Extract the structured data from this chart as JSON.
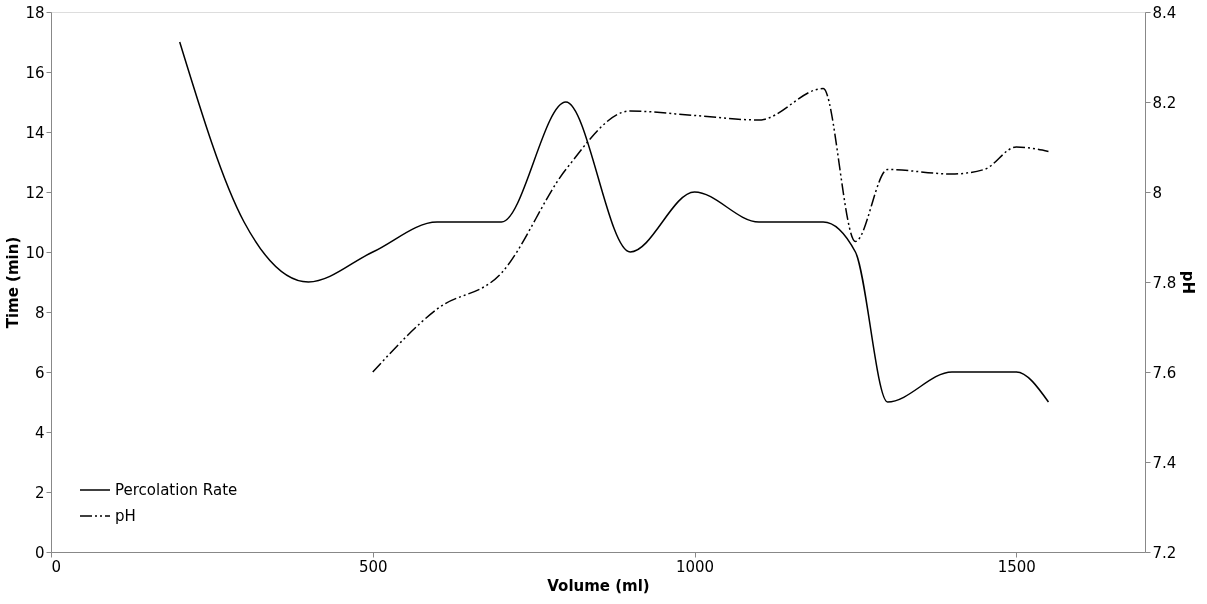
{
  "chart_data": {
    "type": "line",
    "xlabel": "Volume (ml)",
    "ylabel": "Time (min)",
    "y2label": "pH",
    "xlim": [
      0,
      1700
    ],
    "xticks": [
      0,
      500,
      1000,
      1500
    ],
    "ylim": [
      0,
      18
    ],
    "yticks": [
      0,
      2,
      4,
      6,
      8,
      10,
      12,
      14,
      16,
      18
    ],
    "y2lim": [
      7.2,
      8.4
    ],
    "y2ticks": [
      7.2,
      7.4,
      7.6,
      7.8,
      8,
      8.2,
      8.4
    ],
    "grid": false,
    "legend": "bottom left",
    "marker": "none",
    "series": [
      {
        "name": "Percolation Rate",
        "color": "#000000",
        "line_style": "solid",
        "x": [
          200,
          300,
          400,
          500,
          600,
          700,
          800,
          900,
          1000,
          1100,
          1200,
          1250,
          1300,
          1400,
          1500,
          1550
        ],
        "values": [
          17,
          11,
          9,
          10,
          11,
          11,
          15,
          10,
          12,
          11,
          11,
          10,
          5,
          6,
          6,
          5
        ]
      },
      {
        "name": "pH",
        "color": "#000000",
        "line_style": "dashed",
        "axis": "y2",
        "x": [
          500,
          600,
          700,
          800,
          900,
          1000,
          1100,
          1200,
          1250,
          1300,
          1400,
          1450,
          1500,
          1550
        ],
        "values": [
          7.6,
          7.74,
          7.82,
          8.05,
          8.18,
          8.17,
          8.16,
          8.23,
          7.89,
          8.05,
          8.04,
          8.05,
          8.1,
          8.09
        ]
      }
    ]
  }
}
